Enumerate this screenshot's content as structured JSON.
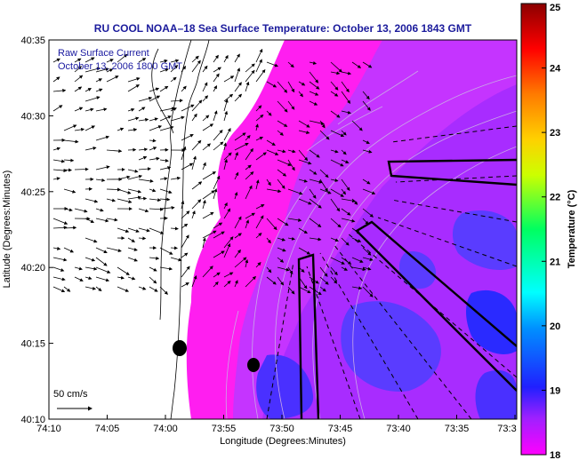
{
  "chart_data": {
    "type": "heatmap",
    "title": "RU COOL  NOAA–18  Sea Surface Temperature:  October 13, 2006 1843 GMT",
    "overlay_lines": [
      "Raw Surface Current",
      "October 13, 2006 1800 GMT"
    ],
    "xlabel": "Longitude (Degrees:Minutes)",
    "ylabel": "Latitude (Degrees:Minutes)",
    "x_tick_labels": [
      "74:10",
      "74:05",
      "74:00",
      "73:55",
      "73:50",
      "73:45",
      "73:40",
      "73:35",
      "73:3"
    ],
    "y_tick_labels": [
      "40:35",
      "40:30",
      "40:25",
      "40:20",
      "40:15",
      "40:10"
    ],
    "colorbar": {
      "label": "Temperature (°C)",
      "min": 18,
      "max": 25,
      "tick_labels": [
        "25",
        "24",
        "23",
        "22",
        "21",
        "20",
        "19",
        "18"
      ]
    },
    "scale_vector_label": "50 cm/s",
    "field_summary": "Mostly 18–19 °C water (magenta/purple) offshore with cooler 19 °C patches (blue) toward southeast; land area white on the west.",
    "colors": {
      "sst_18": "#ff1ef0",
      "sst_18_5": "#c534ff",
      "sst_19": "#5a3cff",
      "sst_19_3": "#2a2aff",
      "land": "#ffffff",
      "vectors": "#000000",
      "contours": "#c9a8e6"
    }
  }
}
